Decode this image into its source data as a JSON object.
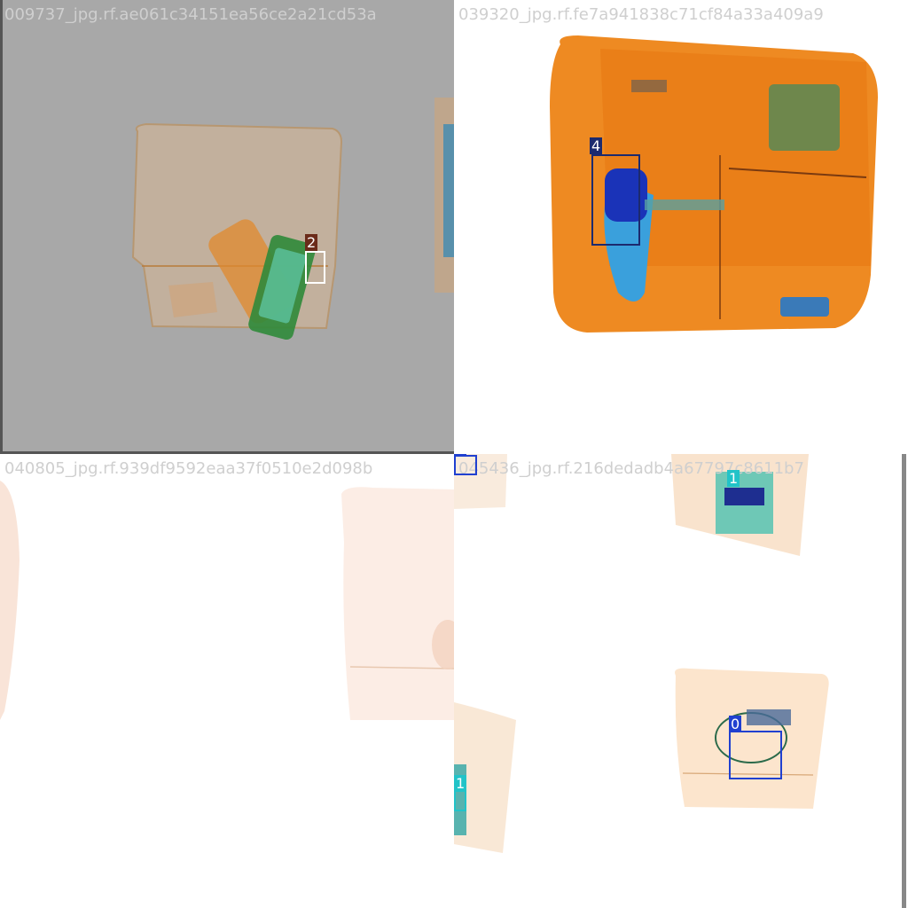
{
  "tiles": [
    {
      "filename": "009737_jpg.rf.ae061c34151ea56ce2a21cd53a",
      "labels": [
        {
          "text": "2",
          "color": "#ffffff",
          "tag_bg": "#6b2b1a"
        }
      ]
    },
    {
      "filename": "039320_jpg.rf.fe7a941838c71cf84a33a409a9",
      "labels": [
        {
          "text": "4",
          "color": "#1c2a6e",
          "tag_bg": "#1c2a6e"
        }
      ]
    },
    {
      "filename": "040805_jpg.rf.939df9592eaa37f0510e2d098b",
      "labels": []
    },
    {
      "filename": "045436_jpg.rf.216dedadb4a67797c8611b7",
      "labels": [
        {
          "text": "0",
          "color": "#2040d0",
          "tag_bg": "#2040d0"
        },
        {
          "text": "1",
          "color": "#22c3c8",
          "tag_bg": "#22c3c8"
        },
        {
          "text": "0",
          "color": "#2040d0",
          "tag_bg": "#2040d0"
        },
        {
          "text": "1",
          "color": "#22c3c8",
          "tag_bg": "#22c3c8"
        }
      ]
    }
  ]
}
